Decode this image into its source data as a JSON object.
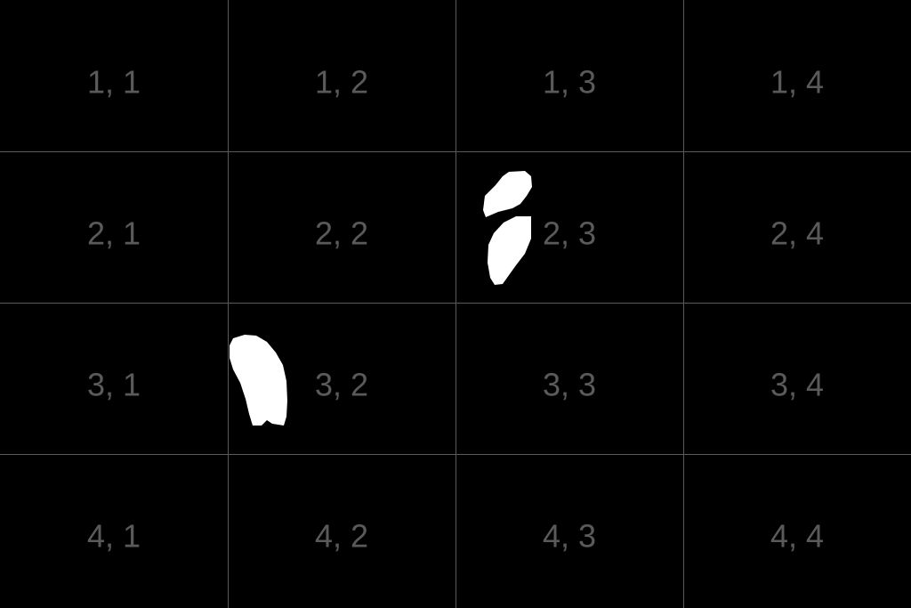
{
  "grid": {
    "rows": 4,
    "cols": 4,
    "line_color": "#5a5a5a",
    "label_color": "#5a5a5a",
    "background": "#000000",
    "labels": [
      [
        "1, 1",
        "1, 2",
        "1, 3",
        "1, 4"
      ],
      [
        "2, 1",
        "2, 2",
        "2, 3",
        "2, 4"
      ],
      [
        "3, 1",
        "3, 2",
        "3, 3",
        "3, 4"
      ],
      [
        "4, 1",
        "4, 2",
        "4, 3",
        "4, 4"
      ]
    ]
  },
  "mask": {
    "color": "#ffffff",
    "regions": [
      "cell 2,3",
      "cell 3,2"
    ]
  }
}
